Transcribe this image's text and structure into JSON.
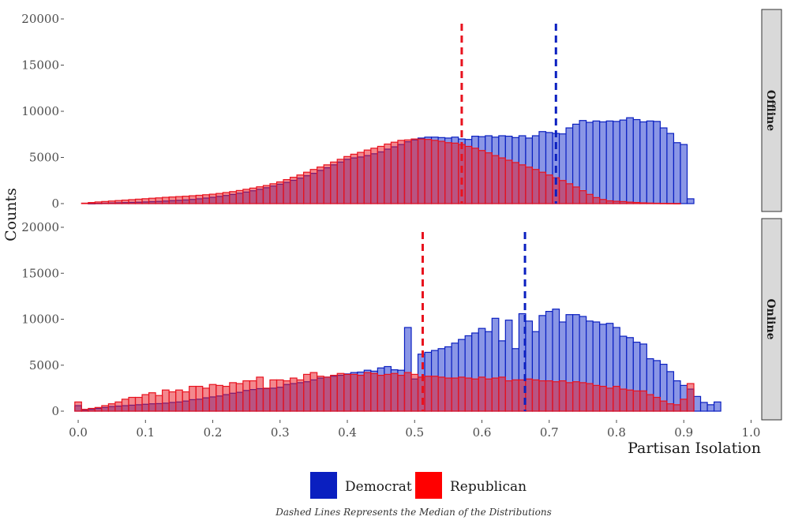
{
  "colors": {
    "democrat_fill": "#8a96e6",
    "democrat_line": "#0a1fc0",
    "republican_fill": "#f57878",
    "republican_line": "#e8121e",
    "overlap_fill": "#c4466a",
    "strip_fill": "#d9d9d9",
    "strip_border": "#333333",
    "tick": "#4d4d4d"
  },
  "chart_data": {
    "type": "bar",
    "subtype": "faceted overlapping histogram",
    "xlabel": "Partisan Isolation",
    "ylabel": "Counts",
    "xlim": [
      -0.02,
      1.01
    ],
    "ylim": [
      0,
      20000
    ],
    "x_ticks": [
      "0.0",
      "0.1",
      "0.2",
      "0.3",
      "0.4",
      "0.5",
      "0.6",
      "0.7",
      "0.8",
      "0.9",
      "1.0"
    ],
    "y_ticks": [
      "0",
      "5000",
      "10000",
      "15000",
      "20000"
    ],
    "bin_start": 0.0,
    "bin_width": 0.01,
    "caption": "Dashed Lines Represents the Median of the Distributions",
    "legend": [
      {
        "name": "Democrat",
        "color": "#0a1fc0"
      },
      {
        "name": "Republican",
        "color": "#e8121e"
      }
    ],
    "facets": [
      {
        "label": "Offline",
        "medians": {
          "Democrat": 0.71,
          "Republican": 0.57
        },
        "series": [
          {
            "name": "Democrat",
            "values": [
              0,
              0,
              10,
              30,
              50,
              70,
              90,
              110,
              130,
              150,
              180,
              210,
              240,
              280,
              320,
              360,
              400,
              450,
              520,
              600,
              680,
              780,
              880,
              990,
              1120,
              1250,
              1390,
              1550,
              1720,
              1900,
              2100,
              2300,
              2520,
              2760,
              3020,
              3280,
              3600,
              3880,
              4200,
              4500,
              4800,
              4950,
              5050,
              5200,
              5400,
              5600,
              5900,
              6150,
              6400,
              6700,
              6900,
              7100,
              7200,
              7200,
              7150,
              7100,
              7200,
              7000,
              6950,
              7300,
              7250,
              7350,
              7200,
              7350,
              7300,
              7150,
              7350,
              7100,
              7350,
              7800,
              7700,
              7600,
              7550,
              8200,
              8600,
              9000,
              8800,
              8950,
              8850,
              8950,
              8900,
              9050,
              9300,
              9100,
              8850,
              8950,
              8900,
              8200,
              7600,
              6600,
              6400,
              520
            ]
          },
          {
            "name": "Republican",
            "values": [
              0,
              50,
              120,
              180,
              230,
              280,
              330,
              380,
              430,
              480,
              530,
              580,
              620,
              680,
              720,
              760,
              800,
              850,
              900,
              960,
              1020,
              1100,
              1200,
              1300,
              1420,
              1550,
              1680,
              1820,
              1960,
              2150,
              2350,
              2600,
              2850,
              3100,
              3400,
              3700,
              3960,
              4200,
              4500,
              4800,
              5100,
              5350,
              5550,
              5800,
              6000,
              6200,
              6450,
              6650,
              6850,
              6900,
              7000,
              7000,
              6950,
              6850,
              6750,
              6600,
              6550,
              6400,
              6200,
              6000,
              5750,
              5500,
              5200,
              4950,
              4700,
              4450,
              4200,
              3950,
              3700,
              3400,
              3100,
              2800,
              2500,
              2150,
              1800,
              1400,
              1000,
              650,
              450,
              300,
              250,
              220,
              160,
              120,
              80,
              60,
              40,
              30,
              20,
              10,
              0
            ]
          }
        ]
      },
      {
        "label": "Online",
        "medians": {
          "Democrat": 0.664,
          "Republican": 0.512
        },
        "series": [
          {
            "name": "Democrat",
            "values": [
              600,
              100,
              200,
              300,
              400,
              500,
              550,
              600,
              650,
              700,
              750,
              800,
              820,
              870,
              950,
              1000,
              1100,
              1250,
              1300,
              1450,
              1550,
              1650,
              1800,
              1950,
              2050,
              2250,
              2350,
              2450,
              2450,
              2500,
              2600,
              2900,
              3000,
              3100,
              3200,
              3400,
              3600,
              3700,
              3800,
              3900,
              4050,
              4200,
              4250,
              4450,
              4350,
              4700,
              4850,
              4500,
              4450,
              9100,
              3500,
              6200,
              6400,
              6600,
              6800,
              7000,
              7400,
              7800,
              8200,
              8500,
              9000,
              8650,
              10100,
              7650,
              9900,
              6800,
              10600,
              9800,
              8650,
              10400,
              10850,
              11100,
              9700,
              10500,
              10500,
              10300,
              9800,
              9700,
              9450,
              9550,
              9100,
              8150,
              8000,
              7500,
              7300,
              5700,
              5500,
              5100,
              4300,
              3300,
              2800,
              2400,
              1600,
              950,
              700,
              1000
            ]
          },
          {
            "name": "Republican",
            "values": [
              1000,
              200,
              300,
              400,
              600,
              800,
              1000,
              1300,
              1500,
              1500,
              1800,
              2000,
              1700,
              2300,
              2100,
              2300,
              2100,
              2700,
              2700,
              2500,
              2900,
              2800,
              2700,
              3100,
              3000,
              3300,
              3300,
              3700,
              2500,
              3400,
              3400,
              3300,
              3600,
              3400,
              4000,
              4200,
              3800,
              3700,
              3900,
              4100,
              4000,
              4000,
              3900,
              4200,
              4100,
              3900,
              4000,
              4100,
              3900,
              4200,
              4000,
              3700,
              3800,
              3800,
              3700,
              3600,
              3600,
              3700,
              3600,
              3500,
              3700,
              3500,
              3600,
              3700,
              3300,
              3400,
              3400,
              3500,
              3400,
              3300,
              3300,
              3200,
              3300,
              3100,
              3200,
              3100,
              3000,
              2800,
              2700,
              2500,
              2700,
              2400,
              2300,
              2200,
              2200,
              1800,
              1500,
              1100,
              800,
              700,
              1300,
              3000
            ]
          }
        ]
      }
    ]
  }
}
